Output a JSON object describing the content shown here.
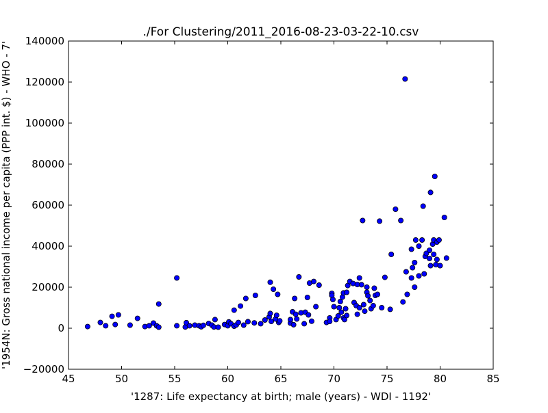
{
  "chart_data": {
    "type": "scatter",
    "title": "./For Clustering/2011_2016-08-23-03-22-10.csv",
    "xlabel": "'1287: Life expectancy at birth; male  (years) - WDI - 1192'",
    "ylabel": "'1954N: Gross national income per capita (PPP int. $) - WHO - 7'",
    "xlim": [
      45,
      85
    ],
    "ylim": [
      -20000,
      140000
    ],
    "xticks": [
      45,
      50,
      55,
      60,
      65,
      70,
      75,
      80,
      85
    ],
    "yticks": [
      -20000,
      0,
      20000,
      40000,
      60000,
      80000,
      100000,
      120000,
      140000
    ],
    "grid": false,
    "marker_color": "#0000ff",
    "series": [
      {
        "points": [
          [
            46.8,
            800
          ],
          [
            48.0,
            2800
          ],
          [
            48.5,
            1200
          ],
          [
            49.1,
            5800
          ],
          [
            49.4,
            1800
          ],
          [
            49.7,
            6500
          ],
          [
            50.8,
            1500
          ],
          [
            51.5,
            4800
          ],
          [
            52.2,
            800
          ],
          [
            52.6,
            1200
          ],
          [
            53.0,
            2500
          ],
          [
            53.3,
            1200
          ],
          [
            53.5,
            500
          ],
          [
            53.5,
            11800
          ],
          [
            55.2,
            24500
          ],
          [
            55.2,
            1200
          ],
          [
            56.0,
            600
          ],
          [
            56.1,
            2700
          ],
          [
            56.4,
            1200
          ],
          [
            56.9,
            1500
          ],
          [
            57.3,
            1200
          ],
          [
            57.5,
            700
          ],
          [
            57.7,
            1400
          ],
          [
            58.2,
            2300
          ],
          [
            58.5,
            1500
          ],
          [
            58.7,
            600
          ],
          [
            58.8,
            4200
          ],
          [
            59.1,
            500
          ],
          [
            59.7,
            1800
          ],
          [
            60.0,
            1200
          ],
          [
            60.1,
            3100
          ],
          [
            60.3,
            2200
          ],
          [
            60.6,
            1000
          ],
          [
            60.6,
            8800
          ],
          [
            60.8,
            1600
          ],
          [
            61.0,
            2800
          ],
          [
            61.2,
            10800
          ],
          [
            61.5,
            1500
          ],
          [
            61.7,
            14500
          ],
          [
            61.9,
            3200
          ],
          [
            62.5,
            2600
          ],
          [
            62.6,
            16000
          ],
          [
            63.1,
            2200
          ],
          [
            63.5,
            4000
          ],
          [
            63.9,
            5500
          ],
          [
            64.0,
            7200
          ],
          [
            64.1,
            3300
          ],
          [
            64.0,
            22400
          ],
          [
            64.3,
            19000
          ],
          [
            64.5,
            4500
          ],
          [
            64.6,
            6300
          ],
          [
            64.7,
            16500
          ],
          [
            64.8,
            2800
          ],
          [
            64.9,
            3600
          ],
          [
            65.9,
            2500
          ],
          [
            65.9,
            4200
          ],
          [
            66.1,
            8000
          ],
          [
            66.2,
            1700
          ],
          [
            66.3,
            14500
          ],
          [
            66.4,
            6800
          ],
          [
            66.5,
            4500
          ],
          [
            66.7,
            25000
          ],
          [
            66.9,
            7500
          ],
          [
            67.2,
            2200
          ],
          [
            67.3,
            7800
          ],
          [
            67.5,
            15000
          ],
          [
            67.6,
            6500
          ],
          [
            67.7,
            22000
          ],
          [
            67.9,
            3400
          ],
          [
            68.1,
            22800
          ],
          [
            68.3,
            10500
          ],
          [
            68.6,
            21000
          ],
          [
            69.3,
            2800
          ],
          [
            69.6,
            5000
          ],
          [
            69.6,
            3300
          ],
          [
            69.8,
            17000
          ],
          [
            69.8,
            16000
          ],
          [
            69.9,
            14000
          ],
          [
            70.0,
            10500
          ],
          [
            70.2,
            4200
          ],
          [
            70.4,
            6000
          ],
          [
            70.5,
            10000
          ],
          [
            70.6,
            13000
          ],
          [
            70.7,
            7800
          ],
          [
            70.8,
            15200
          ],
          [
            70.9,
            5000
          ],
          [
            70.9,
            17200
          ],
          [
            71.0,
            4200
          ],
          [
            71.1,
            9500
          ],
          [
            71.2,
            17500
          ],
          [
            71.2,
            6200
          ],
          [
            71.3,
            20800
          ],
          [
            71.5,
            22800
          ],
          [
            71.8,
            21800
          ],
          [
            71.9,
            12500
          ],
          [
            72.1,
            11000
          ],
          [
            72.2,
            21300
          ],
          [
            72.2,
            6800
          ],
          [
            72.4,
            10000
          ],
          [
            72.4,
            24500
          ],
          [
            72.6,
            21200
          ],
          [
            72.7,
            52500
          ],
          [
            72.8,
            11500
          ],
          [
            72.9,
            8300
          ],
          [
            73.1,
            20000
          ],
          [
            73.1,
            17500
          ],
          [
            73.2,
            15800
          ],
          [
            73.4,
            13500
          ],
          [
            73.5,
            9500
          ],
          [
            73.7,
            11000
          ],
          [
            73.8,
            19500
          ],
          [
            73.9,
            16000
          ],
          [
            74.1,
            16500
          ],
          [
            74.3,
            52200
          ],
          [
            74.5,
            10000
          ],
          [
            74.8,
            24800
          ],
          [
            75.3,
            9200
          ],
          [
            75.4,
            36000
          ],
          [
            75.8,
            58000
          ],
          [
            76.3,
            52500
          ],
          [
            76.5,
            12800
          ],
          [
            76.7,
            121500
          ],
          [
            76.8,
            27500
          ],
          [
            76.9,
            16500
          ],
          [
            77.3,
            38500
          ],
          [
            77.3,
            24500
          ],
          [
            77.4,
            29500
          ],
          [
            77.6,
            20000
          ],
          [
            77.6,
            32000
          ],
          [
            77.7,
            43000
          ],
          [
            78.0,
            40000
          ],
          [
            78.0,
            25500
          ],
          [
            78.3,
            43000
          ],
          [
            78.4,
            59500
          ],
          [
            78.5,
            26500
          ],
          [
            78.6,
            35000
          ],
          [
            78.7,
            36500
          ],
          [
            79.0,
            34000
          ],
          [
            79.0,
            38000
          ],
          [
            79.1,
            66200
          ],
          [
            79.1,
            30500
          ],
          [
            79.3,
            41000
          ],
          [
            79.4,
            43000
          ],
          [
            79.4,
            36000
          ],
          [
            79.5,
            74000
          ],
          [
            79.6,
            31000
          ],
          [
            79.7,
            42000
          ],
          [
            79.7,
            33500
          ],
          [
            79.9,
            43000
          ],
          [
            80.0,
            30500
          ],
          [
            80.4,
            54000
          ],
          [
            80.6,
            34200
          ]
        ]
      }
    ]
  }
}
